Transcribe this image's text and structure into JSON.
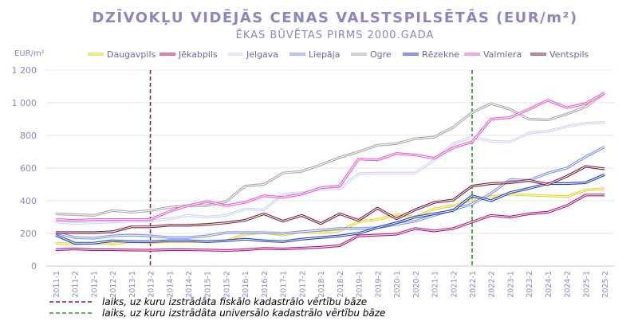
{
  "chart_data": {
    "type": "line",
    "title": "DZĪVOKĻU VIDĒJĀS CENAS VALSTSPILSĒTĀS (EUR/m²)",
    "subtitle": "ĒKAS BŪVĒTAS PIRMS 2000.GADA",
    "ylabel": "EUR/m²",
    "ylim": [
      0,
      1200
    ],
    "yticks": [
      "0",
      "200",
      "400",
      "600",
      "800",
      "1 000",
      "1 200"
    ],
    "grid": true,
    "legend_position": "top",
    "categories": [
      "2011-1",
      "2011-2",
      "2012-1",
      "2012-2",
      "2013-1",
      "2013-2",
      "2014-1",
      "2014-2",
      "2015-1",
      "2015-2",
      "2016-1",
      "2016-2",
      "2017-1",
      "2017-2",
      "2018-1",
      "2018-2",
      "2019-1",
      "2019-2",
      "2020-1",
      "2020-2",
      "2021-1",
      "2021-2",
      "2022-1",
      "2022-2",
      "2023-1",
      "2023-2",
      "2024-1",
      "2024-2",
      "2025-1",
      "2025-2"
    ],
    "series": [
      {
        "name": "Daugavpils",
        "color": "#e8d21a",
        "values": [
          140,
          135,
          140,
          135,
          150,
          145,
          150,
          150,
          150,
          155,
          195,
          205,
          190,
          210,
          205,
          215,
          270,
          285,
          315,
          300,
          350,
          370,
          405,
          425,
          440,
          435,
          430,
          425,
          465,
          475
        ]
      },
      {
        "name": "Jēkabpils",
        "color": "#b0147e",
        "values": [
          100,
          105,
          100,
          100,
          98,
          97,
          100,
          100,
          98,
          95,
          100,
          108,
          105,
          110,
          115,
          125,
          185,
          190,
          195,
          230,
          215,
          230,
          270,
          310,
          300,
          320,
          330,
          370,
          435,
          435
        ]
      },
      {
        "name": "Jelgava",
        "color": "#c9d3f5",
        "values": [
          270,
          260,
          265,
          270,
          275,
          275,
          290,
          310,
          300,
          310,
          350,
          345,
          440,
          450,
          470,
          475,
          565,
          570,
          570,
          570,
          650,
          750,
          790,
          765,
          760,
          815,
          825,
          855,
          875,
          880
        ]
      },
      {
        "name": "Liepāja",
        "color": "#7b93ea",
        "values": [
          205,
          175,
          170,
          185,
          190,
          185,
          175,
          175,
          185,
          205,
          205,
          205,
          200,
          210,
          220,
          230,
          230,
          235,
          255,
          275,
          310,
          345,
          380,
          445,
          530,
          525,
          570,
          600,
          670,
          730
        ]
      },
      {
        "name": "Ogre",
        "color": "#a8a8a8",
        "values": [
          320,
          315,
          310,
          340,
          330,
          340,
          360,
          370,
          370,
          395,
          490,
          500,
          570,
          580,
          620,
          665,
          700,
          740,
          750,
          780,
          790,
          850,
          940,
          995,
          960,
          900,
          895,
          930,
          975,
          1060
        ]
      },
      {
        "name": "Rēzekne",
        "color": "#1f3fc4",
        "values": [
          190,
          140,
          140,
          155,
          150,
          150,
          155,
          155,
          150,
          155,
          165,
          155,
          150,
          165,
          175,
          185,
          200,
          235,
          265,
          300,
          320,
          340,
          430,
          400,
          450,
          475,
          505,
          505,
          510,
          560
        ]
      },
      {
        "name": "Valmiera",
        "color": "#ee5ad0",
        "values": [
          285,
          280,
          285,
          285,
          285,
          285,
          335,
          370,
          395,
          370,
          390,
          430,
          420,
          440,
          480,
          490,
          655,
          650,
          690,
          680,
          660,
          725,
          760,
          900,
          910,
          960,
          1015,
          970,
          995,
          1060
        ]
      },
      {
        "name": "Ventspils",
        "color": "#7a1f3a",
        "values": [
          205,
          205,
          205,
          210,
          240,
          240,
          250,
          250,
          255,
          265,
          280,
          320,
          275,
          310,
          260,
          320,
          280,
          355,
          290,
          345,
          390,
          405,
          490,
          505,
          510,
          525,
          500,
          550,
          610,
          595
        ]
      }
    ],
    "markers": [
      {
        "category": "2013-2",
        "color": "#8b1a58",
        "label": "laiks, uz kuru izstrādāta fiskālo kadastrālo vērtību bāze"
      },
      {
        "category": "2022-1",
        "color": "#1aa01a",
        "label": "laiks, uz kuru izstrādāta universālo kadastrālo vērtību bāze"
      }
    ]
  }
}
